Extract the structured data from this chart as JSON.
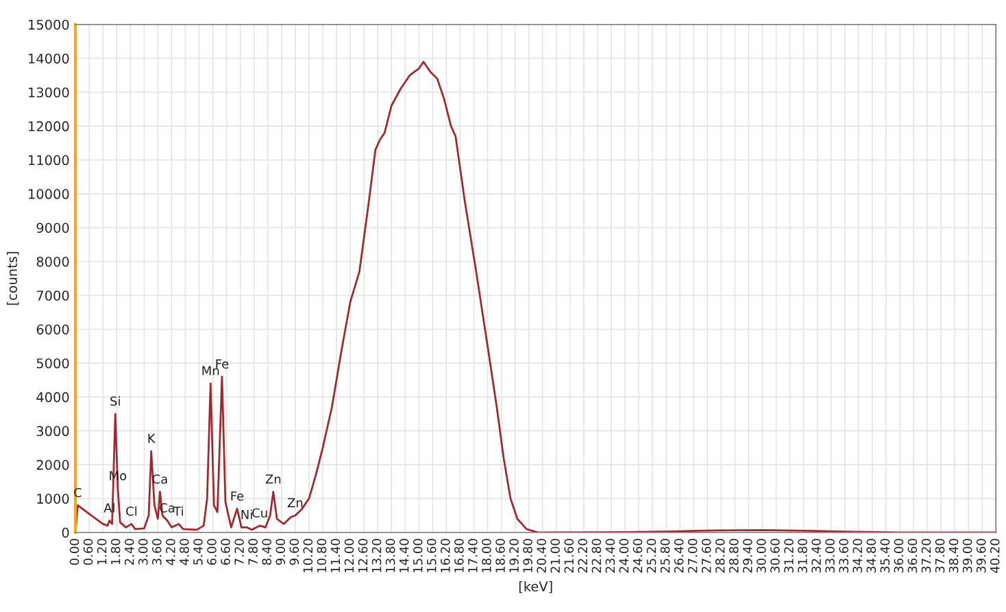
{
  "chart_data": {
    "type": "line",
    "xlabel": "[keV]",
    "ylabel": "[counts]",
    "xlim": [
      0,
      40.2
    ],
    "ylim": [
      0,
      15000
    ],
    "yticks": [
      0,
      1000,
      2000,
      3000,
      4000,
      5000,
      6000,
      7000,
      8000,
      9000,
      10000,
      11000,
      12000,
      13000,
      14000,
      15000
    ],
    "xticks": [
      {
        "value": 0,
        "label": "0.00"
      },
      {
        "value": 0.6,
        "label": "0.60"
      },
      {
        "value": 1.2,
        "label": "1.20"
      },
      {
        "value": 1.8,
        "label": "1.80"
      },
      {
        "value": 2.4,
        "label": "2.40"
      },
      {
        "value": 3.0,
        "label": "3.00"
      },
      {
        "value": 3.6,
        "label": "3.60"
      },
      {
        "value": 4.2,
        "label": "4.20"
      },
      {
        "value": 4.8,
        "label": "4.80"
      },
      {
        "value": 5.4,
        "label": "5.40"
      },
      {
        "value": 6.0,
        "label": "6.00"
      },
      {
        "value": 6.6,
        "label": "6.60"
      },
      {
        "value": 7.2,
        "label": "7.20"
      },
      {
        "value": 7.8,
        "label": "7.80"
      },
      {
        "value": 8.4,
        "label": "8.40"
      },
      {
        "value": 9.0,
        "label": "9.00"
      },
      {
        "value": 9.6,
        "label": "9.60"
      },
      {
        "value": 10.2,
        "label": "10.20"
      },
      {
        "value": 10.8,
        "label": "10.80"
      },
      {
        "value": 11.4,
        "label": "11.40"
      },
      {
        "value": 12.0,
        "label": "12.00"
      },
      {
        "value": 12.6,
        "label": "12.60"
      },
      {
        "value": 13.2,
        "label": "13.20"
      },
      {
        "value": 13.8,
        "label": "13.80"
      },
      {
        "value": 14.4,
        "label": "14.40"
      },
      {
        "value": 15.0,
        "label": "15.00"
      },
      {
        "value": 15.6,
        "label": "15.60"
      },
      {
        "value": 16.2,
        "label": "16.20"
      },
      {
        "value": 16.8,
        "label": "16.80"
      },
      {
        "value": 17.4,
        "label": "17.40"
      },
      {
        "value": 18.0,
        "label": "18.00"
      },
      {
        "value": 18.6,
        "label": "18.60"
      },
      {
        "value": 19.2,
        "label": "19.20"
      },
      {
        "value": 19.8,
        "label": "19.80"
      },
      {
        "value": 20.4,
        "label": "20.40"
      },
      {
        "value": 21.0,
        "label": "21.00"
      },
      {
        "value": 21.6,
        "label": "21.60"
      },
      {
        "value": 22.2,
        "label": "22.20"
      },
      {
        "value": 22.8,
        "label": "22.80"
      },
      {
        "value": 23.4,
        "label": "23.40"
      },
      {
        "value": 24.0,
        "label": "24.00"
      },
      {
        "value": 24.6,
        "label": "24.60"
      },
      {
        "value": 25.2,
        "label": "25.20"
      },
      {
        "value": 25.8,
        "label": "25.80"
      },
      {
        "value": 26.4,
        "label": "26.40"
      },
      {
        "value": 27.0,
        "label": "27.00"
      },
      {
        "value": 27.6,
        "label": "27.60"
      },
      {
        "value": 28.2,
        "label": "28.20"
      },
      {
        "value": 28.8,
        "label": "28.80"
      },
      {
        "value": 29.4,
        "label": "29.40"
      },
      {
        "value": 30.0,
        "label": "30.00"
      },
      {
        "value": 30.6,
        "label": "30.60"
      },
      {
        "value": 31.2,
        "label": "31.20"
      },
      {
        "value": 31.8,
        "label": "31.80"
      },
      {
        "value": 32.4,
        "label": "32.40"
      },
      {
        "value": 33.0,
        "label": "33.00"
      },
      {
        "value": 33.6,
        "label": "33.60"
      },
      {
        "value": 34.2,
        "label": "34.20"
      },
      {
        "value": 34.8,
        "label": "34.80"
      },
      {
        "value": 35.4,
        "label": "35.40"
      },
      {
        "value": 36.0,
        "label": "36.00"
      },
      {
        "value": 36.6,
        "label": "36.60"
      },
      {
        "value": 37.2,
        "label": "37.20"
      },
      {
        "value": 37.8,
        "label": "37.80"
      },
      {
        "value": 38.4,
        "label": "38.40"
      },
      {
        "value": 39.0,
        "label": "39.00"
      },
      {
        "value": 39.6,
        "label": "39.60"
      },
      {
        "value": 40.2,
        "label": "40.20"
      }
    ],
    "grid": true,
    "marker": "none",
    "line_style": "solid",
    "series": [
      {
        "color": "#a3282e",
        "x": [
          0.0,
          0.1,
          0.3,
          0.6,
          0.9,
          1.2,
          1.4,
          1.49,
          1.6,
          1.74,
          1.85,
          1.95,
          2.2,
          2.45,
          2.6,
          3.0,
          3.2,
          3.31,
          3.45,
          3.6,
          3.69,
          3.8,
          4.01,
          4.2,
          4.51,
          4.7,
          5.3,
          5.6,
          5.75,
          5.9,
          6.05,
          6.2,
          6.4,
          6.55,
          6.8,
          7.06,
          7.25,
          7.48,
          7.7,
          8.05,
          8.3,
          8.5,
          8.64,
          8.8,
          9.1,
          9.4,
          9.6,
          9.9,
          10.2,
          10.5,
          10.8,
          11.2,
          11.6,
          12.0,
          12.4,
          12.8,
          13.1,
          13.3,
          13.5,
          13.8,
          14.2,
          14.6,
          15.0,
          15.2,
          15.5,
          15.8,
          16.1,
          16.4,
          16.6,
          17.0,
          17.5,
          18.0,
          18.4,
          18.7,
          19.0,
          19.3,
          19.7,
          20.2,
          24.0,
          26.0,
          28.0,
          30.0,
          32.0,
          34.0,
          36.0,
          40.2
        ],
        "values": [
          0,
          800,
          700,
          550,
          400,
          250,
          200,
          350,
          250,
          3500,
          1300,
          300,
          150,
          250,
          100,
          120,
          500,
          2400,
          800,
          400,
          1200,
          500,
          350,
          150,
          250,
          100,
          80,
          200,
          1000,
          4400,
          800,
          600,
          4600,
          900,
          150,
          700,
          150,
          150,
          80,
          200,
          150,
          500,
          1200,
          400,
          250,
          450,
          500,
          700,
          1000,
          1700,
          2500,
          3700,
          5300,
          6800,
          7700,
          9700,
          11300,
          11600,
          11800,
          12600,
          13100,
          13500,
          13700,
          13900,
          13600,
          13400,
          12800,
          12000,
          11700,
          9800,
          7700,
          5500,
          3700,
          2200,
          1000,
          400,
          100,
          0,
          10,
          30,
          60,
          70,
          50,
          20,
          0,
          0
        ]
      }
    ],
    "annotations": [
      {
        "text": "C",
        "x": 0.1,
        "y": 800
      },
      {
        "text": "Al",
        "x": 1.49,
        "y": 350
      },
      {
        "text": "Si",
        "x": 1.74,
        "y": 3500
      },
      {
        "text": "Mo",
        "x": 1.85,
        "y": 1300
      },
      {
        "text": "Cl",
        "x": 2.45,
        "y": 250
      },
      {
        "text": "K",
        "x": 3.31,
        "y": 2400
      },
      {
        "text": "Ca",
        "x": 3.69,
        "y": 1200
      },
      {
        "text": "Ca",
        "x": 4.01,
        "y": 350
      },
      {
        "text": "Ti",
        "x": 4.51,
        "y": 250
      },
      {
        "text": "Mn",
        "x": 5.9,
        "y": 4400
      },
      {
        "text": "Fe",
        "x": 6.4,
        "y": 4600
      },
      {
        "text": "Fe",
        "x": 7.06,
        "y": 700
      },
      {
        "text": "Ni",
        "x": 7.48,
        "y": 150
      },
      {
        "text": "Cu",
        "x": 8.05,
        "y": 200
      },
      {
        "text": "Zn",
        "x": 8.64,
        "y": 1200
      },
      {
        "text": "Zn",
        "x": 9.6,
        "y": 500
      }
    ]
  }
}
